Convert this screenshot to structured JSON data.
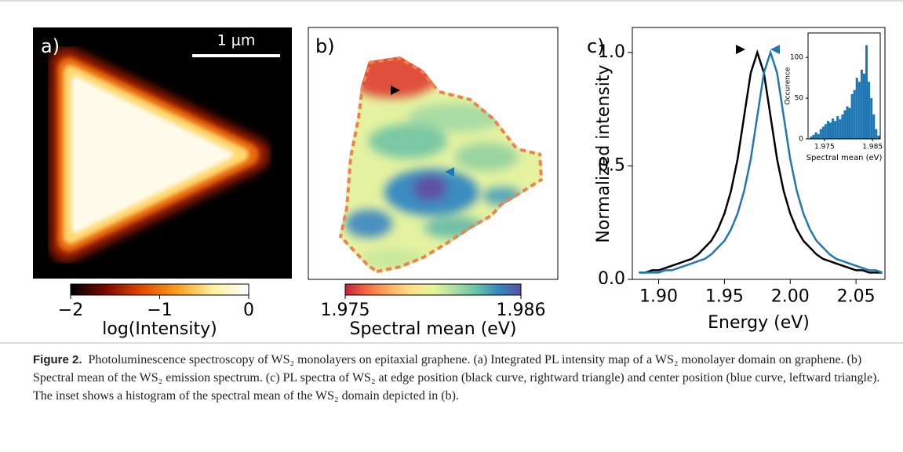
{
  "chart_data": [
    {
      "type": "heatmap",
      "panel_label": "a)",
      "scale_bar": "1 μm",
      "colorbar": {
        "label": "log(Intensity)",
        "lim": [
          -2,
          0
        ],
        "ticks": [
          {
            "value": -2,
            "label": "−2"
          },
          {
            "value": -1,
            "label": "−1"
          },
          0
        ],
        "colors": [
          "#000000",
          "#7a0a00",
          "#e04a00",
          "#f8a020",
          "#fff0a0",
          "#ffffff"
        ]
      }
    },
    {
      "type": "heatmap",
      "panel_label": "b)",
      "colorbar": {
        "label": "Spectral mean (eV)",
        "lim": [
          1.975,
          1.986
        ],
        "ticks": [
          1.975,
          1.986
        ],
        "colors": [
          "#c8203c",
          "#f46d43",
          "#fdae61",
          "#fee08b",
          "#e6f598",
          "#abdda4",
          "#66c2a5",
          "#3288bd",
          "#5e4fa2"
        ]
      }
    },
    {
      "type": "line",
      "panel_label": "c)",
      "xlabel": "Energy (eV)",
      "ylabel": "Normalized intensity",
      "xlim": [
        1.88,
        2.072
      ],
      "ylim": [
        0,
        1.11
      ],
      "xticks": [
        {
          "value": 1.9,
          "label": "1.90"
        },
        1.95,
        {
          "value": 2,
          "label": "2.00"
        },
        2.05
      ],
      "yticks": [
        {
          "value": 0,
          "label": "0.0"
        },
        0.5,
        {
          "value": 1,
          "label": "1.0"
        }
      ],
      "x": [
        1.885,
        1.89,
        1.895,
        1.9,
        1.905,
        1.91,
        1.915,
        1.92,
        1.925,
        1.93,
        1.935,
        1.94,
        1.945,
        1.95,
        1.955,
        1.96,
        1.965,
        1.97,
        1.975,
        1.98,
        1.985,
        1.99,
        1.995,
        2.0,
        2.005,
        2.01,
        2.015,
        2.02,
        2.025,
        2.03,
        2.035,
        2.04,
        2.045,
        2.05,
        2.055,
        2.06,
        2.065,
        2.07
      ],
      "series": [
        {
          "color": "#000000",
          "values": [
            0.03,
            0.03,
            0.04,
            0.04,
            0.05,
            0.06,
            0.07,
            0.08,
            0.09,
            0.11,
            0.14,
            0.17,
            0.22,
            0.29,
            0.39,
            0.53,
            0.72,
            0.91,
            1.0,
            0.91,
            0.72,
            0.53,
            0.39,
            0.29,
            0.22,
            0.17,
            0.14,
            0.11,
            0.09,
            0.08,
            0.07,
            0.06,
            0.05,
            0.04,
            0.04,
            0.03,
            0.03,
            0.03
          ]
        },
        {
          "color": "#1f77b4",
          "values": [
            0.03,
            0.03,
            0.03,
            0.03,
            0.04,
            0.04,
            0.05,
            0.06,
            0.07,
            0.08,
            0.09,
            0.11,
            0.14,
            0.17,
            0.22,
            0.29,
            0.39,
            0.53,
            0.72,
            0.91,
            1.0,
            0.91,
            0.72,
            0.53,
            0.39,
            0.29,
            0.22,
            0.17,
            0.14,
            0.11,
            0.09,
            0.08,
            0.07,
            0.06,
            0.05,
            0.04,
            0.04,
            0.03
          ]
        }
      ],
      "inset": {
        "type": "histogram",
        "xlabel": "Spectral mean (eV)",
        "ylabel": "Occurence",
        "color": "#1f77b4",
        "xlim": [
          1.9716,
          1.9866
        ],
        "ylim": [
          0,
          130
        ],
        "xticks": [
          1.975,
          1.985
        ],
        "yticks": [
          0,
          50,
          100
        ],
        "bins": [
          1.972,
          1.9725,
          1.973,
          1.9735,
          1.974,
          1.9745,
          1.975,
          1.9755,
          1.976,
          1.9765,
          1.977,
          1.9775,
          1.978,
          1.9785,
          1.979,
          1.9795,
          1.98,
          1.9805,
          1.981,
          1.9815,
          1.982,
          1.9825,
          1.983,
          1.9835,
          1.984,
          1.9845,
          1.985,
          1.9855,
          1.986,
          1.9865
        ],
        "values": [
          3,
          5,
          8,
          6,
          12,
          15,
          18,
          22,
          20,
          25,
          22,
          28,
          24,
          30,
          35,
          40,
          38,
          55,
          60,
          75,
          70,
          85,
          80,
          115,
          70,
          50,
          30,
          12,
          4
        ]
      }
    }
  ],
  "caption": {
    "label": "Figure 2.",
    "text": "Photoluminescence spectroscopy of WS₂ monolayers on epitaxial graphene. (a) Integrated PL intensity map of a WS₂ monolayer domain on graphene. (b) Spectral mean of the WS₂ emission spectrum. (c) PL spectra of WS₂ at edge position (black curve, rightward triangle) and center position (blue curve, leftward triangle). The inset shows a histogram of the spectral mean of the WS₂ domain depicted in (b)."
  }
}
